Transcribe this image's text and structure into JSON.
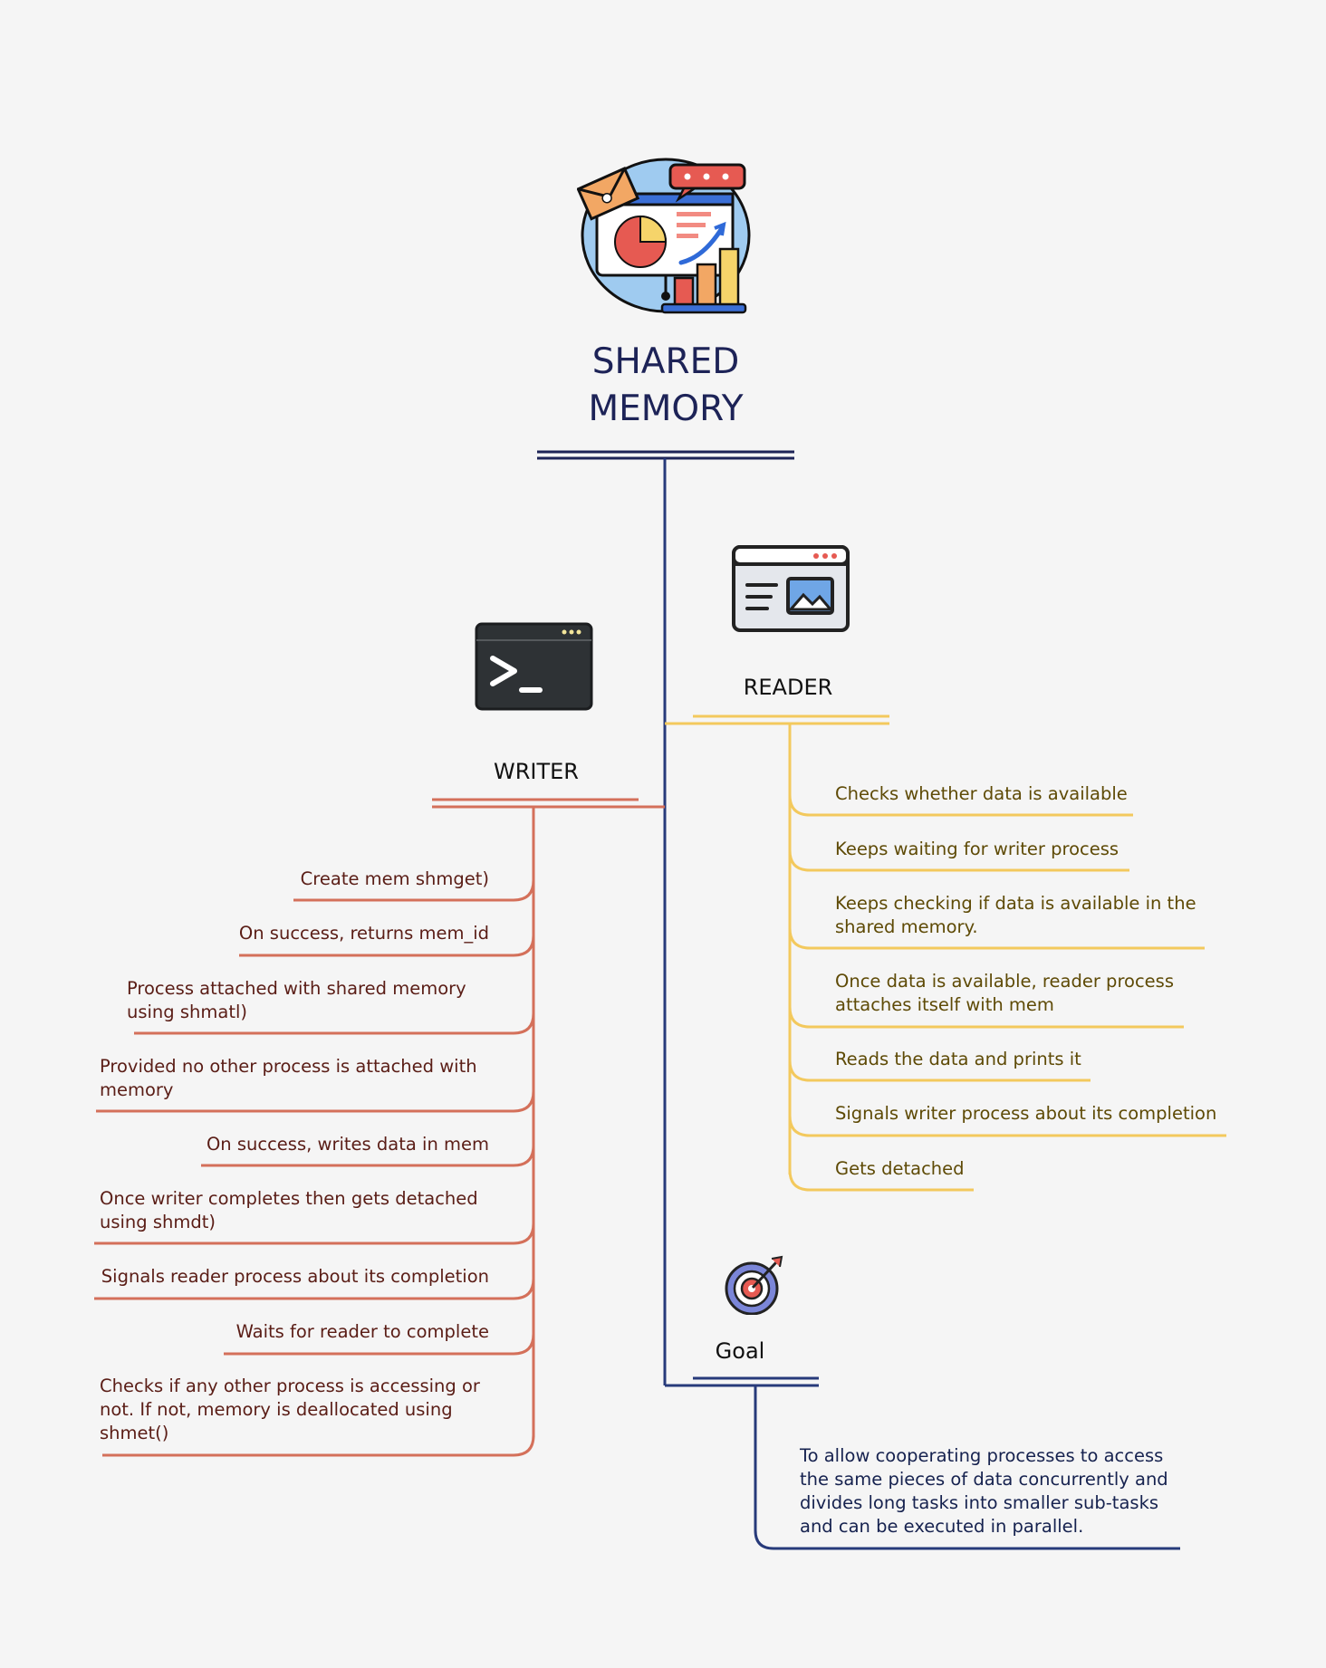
{
  "title": {
    "line1": "SHARED",
    "line2": "MEMORY"
  },
  "colors": {
    "background": "#f5f5f5",
    "trunk": "#273a7a",
    "writer": "#d4705a",
    "reader": "#f3c95d",
    "goal": "#273a7a",
    "title": "#1d2357"
  },
  "icons": {
    "main": "presentation-chart-icon",
    "writer": "terminal-icon",
    "reader": "browser-window-icon",
    "goal": "target-icon"
  },
  "writer": {
    "label": "WRITER",
    "items": [
      "Create mem shmget)",
      "On success, returns mem_id",
      "Process attached with shared memory using shmatl)",
      "Provided no other process is attached with memory",
      "On success, writes data in mem",
      "Once writer completes then gets detached using shmdt)",
      "Signals reader process about its completion",
      "Waits for reader to complete",
      "Checks if any other process is accessing or not. If not, memory is deallocated using shmet()"
    ]
  },
  "reader": {
    "label": "READER",
    "items": [
      "Checks whether data is available",
      "Keeps waiting for writer process",
      "Keeps checking if data is available in the shared memory.",
      "Once data is available, reader process attaches itself with mem",
      "Reads the data and prints it",
      "Signals writer process about its completion",
      "Gets detached"
    ]
  },
  "goal": {
    "label": "Goal",
    "text": "To allow cooperating processes to access the same pieces of data concurrently and divides long tasks into smaller sub-tasks and can be executed in parallel."
  }
}
